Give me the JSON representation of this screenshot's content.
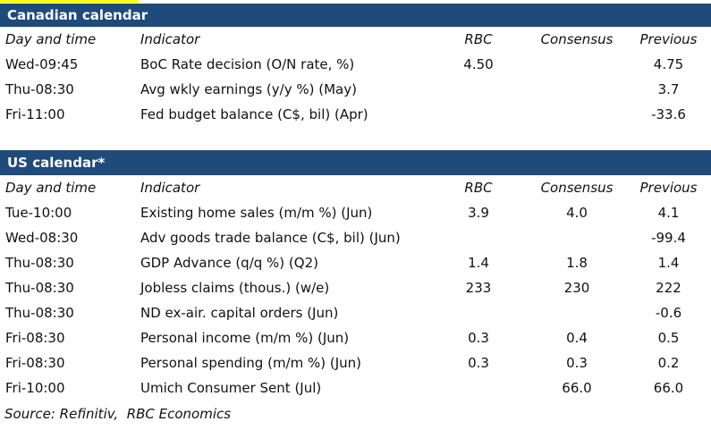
{
  "page": {
    "background": "#ffffff",
    "text_color": "#111111"
  },
  "accent": {
    "bar_background": "#1f4b7b",
    "bar_text_color": "#ffffff",
    "highlight_strip_color": "#ffff00"
  },
  "canadian_calendar": {
    "title": "Canadian calendar",
    "columns": [
      "Day and time",
      "Indicator",
      "RBC",
      "Consensus",
      "Previous"
    ],
    "rows": [
      {
        "day": "Wed-09:45",
        "indicator": "BoC Rate decision (O/N rate, %)",
        "rbc": "4.50",
        "consensus": "",
        "previous": "4.75"
      },
      {
        "day": "Thu-08:30",
        "indicator": "Avg wkly earnings (y/y %) (May)",
        "rbc": "",
        "consensus": "",
        "previous": "3.7"
      },
      {
        "day": "Fri-11:00",
        "indicator": "Fed budget balance (C$, bil) (Apr)",
        "rbc": "",
        "consensus": "",
        "previous": "-33.6"
      }
    ]
  },
  "us_calendar": {
    "title": "US calendar*",
    "columns": [
      "Day and time",
      "Indicator",
      "RBC",
      "Consensus",
      "Previous"
    ],
    "rows": [
      {
        "day": "Tue-10:00",
        "indicator": "Existing home sales (m/m %) (Jun)",
        "rbc": "3.9",
        "consensus": "4.0",
        "previous": "4.1"
      },
      {
        "day": "Wed-08:30",
        "indicator": "Adv goods trade balance (C$, bil) (Jun)",
        "rbc": "",
        "consensus": "",
        "previous": "-99.4"
      },
      {
        "day": "Thu-08:30",
        "indicator": "GDP Advance (q/q %) (Q2)",
        "rbc": "1.4",
        "consensus": "1.8",
        "previous": "1.4"
      },
      {
        "day": "Thu-08:30",
        "indicator": "Jobless claims (thous.) (w/e)",
        "rbc": "233",
        "consensus": "230",
        "previous": "222"
      },
      {
        "day": "Thu-08:30",
        "indicator": "ND ex-air. capital orders (Jun)",
        "rbc": "",
        "consensus": "",
        "previous": "-0.6"
      },
      {
        "day": "Fri-08:30",
        "indicator": "Personal income (m/m %) (Jun)",
        "rbc": "0.3",
        "consensus": "0.4",
        "previous": "0.5"
      },
      {
        "day": "Fri-08:30",
        "indicator": "Personal spending (m/m %) (Jun)",
        "rbc": "0.3",
        "consensus": "0.3",
        "previous": "0.2"
      },
      {
        "day": "Fri-10:00",
        "indicator": "Umich Consumer Sent (Jul)",
        "rbc": "",
        "consensus": "66.0",
        "previous": "66.0"
      }
    ]
  },
  "source_note": "Source: Refinitiv,  RBC Economics"
}
